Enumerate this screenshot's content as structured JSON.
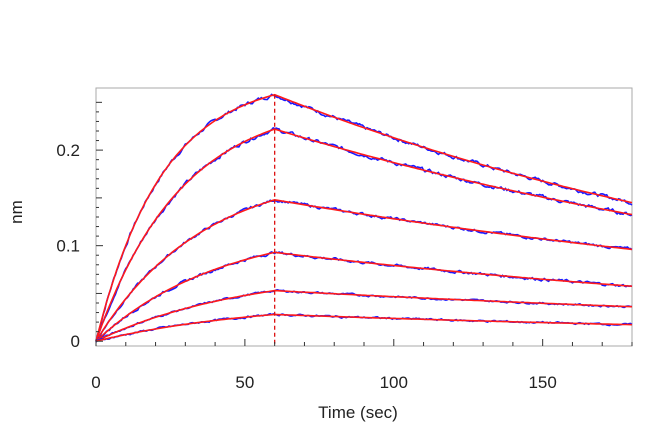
{
  "chart_data": {
    "type": "line",
    "title": "",
    "xlabel": "Time (sec)",
    "ylabel": "nm",
    "xlim": [
      0,
      180
    ],
    "ylim": [
      -0.005,
      0.265
    ],
    "x_ticks": [
      0,
      50,
      100,
      150
    ],
    "x_tick_labels": [
      "0",
      "50",
      "100",
      "150"
    ],
    "y_ticks": [
      0,
      0.1,
      0.2
    ],
    "y_tick_labels": [
      "0",
      "0.1",
      "0.2"
    ],
    "grid": false,
    "legend": "none",
    "association_end_x": 60,
    "colors": {
      "measured": "#1a1aff",
      "fit": "#ff1a1a",
      "marker": "#dd1111",
      "axis": "#aaaaaa"
    },
    "series": [
      {
        "curve": 1,
        "peak": 0.258,
        "k_on": 0.045,
        "k_off": 0.0048,
        "noise": 0.004
      },
      {
        "curve": 2,
        "peak": 0.222,
        "k_on": 0.035,
        "k_off": 0.0043,
        "noise": 0.004
      },
      {
        "curve": 3,
        "peak": 0.148,
        "k_on": 0.028,
        "k_off": 0.0036,
        "noise": 0.003
      },
      {
        "curve": 4,
        "peak": 0.093,
        "k_on": 0.024,
        "k_off": 0.004,
        "noise": 0.003
      },
      {
        "curve": 5,
        "peak": 0.053,
        "k_on": 0.02,
        "k_off": 0.0032,
        "noise": 0.002
      },
      {
        "curve": 6,
        "peak": 0.028,
        "k_on": 0.018,
        "k_off": 0.004,
        "noise": 0.002
      }
    ]
  }
}
